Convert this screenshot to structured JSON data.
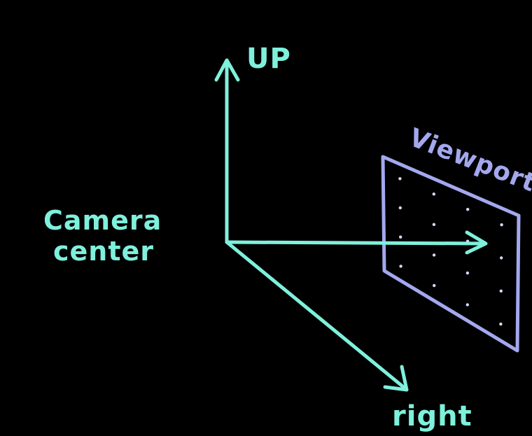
{
  "labels": {
    "camera_center_line1": "Camera",
    "camera_center_line2": "center",
    "up": "UP",
    "right": "right",
    "viewport": "Viewport"
  },
  "colors": {
    "background": "#000000",
    "axis": "#7ff0dc",
    "viewport": "#a3a8ee",
    "dot": "#d6d9f5"
  },
  "viewport_grid": {
    "rows": 4,
    "cols": 4
  }
}
